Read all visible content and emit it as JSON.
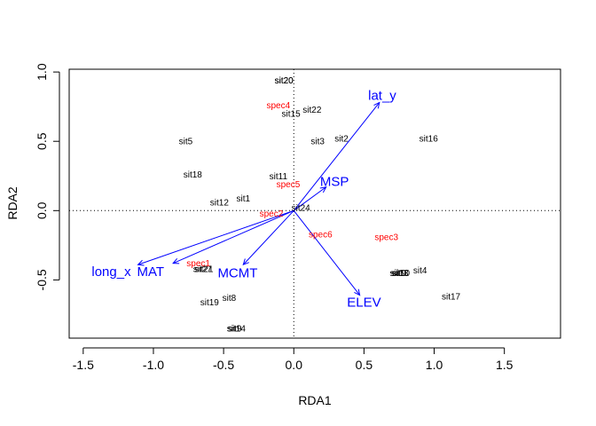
{
  "chart_data": {
    "type": "scatter",
    "xlabel": "RDA1",
    "ylabel": "RDA2",
    "xlim": [
      -1.6,
      1.9
    ],
    "ylim": [
      -0.92,
      1.02
    ],
    "xticks": [
      -1.5,
      -1.0,
      -0.5,
      0.0,
      0.5,
      1.0,
      1.5
    ],
    "xtick_labels": [
      "-1.5",
      "-1.0",
      "-0.5",
      "0.0",
      "0.5",
      "1.0",
      "1.5"
    ],
    "yticks": [
      -0.5,
      0.0,
      0.5,
      1.0
    ],
    "ytick_labels": [
      "-0.5",
      "0.0",
      "0.5",
      "1.0"
    ],
    "reference_lines": {
      "x": 0,
      "y": 0,
      "style": "dotted"
    },
    "grid": false,
    "colors": {
      "sites": "#000000",
      "species": "#ff0000",
      "biplot": "#0000ff",
      "axes": "#000000"
    },
    "sites": [
      {
        "label": "sit20",
        "x": -0.07,
        "y": 0.94
      },
      {
        "label": "sit20",
        "x": -0.07,
        "y": 0.94
      },
      {
        "label": "sit22",
        "x": 0.13,
        "y": 0.73
      },
      {
        "label": "sit15",
        "x": -0.02,
        "y": 0.7
      },
      {
        "label": "sit5",
        "x": -0.77,
        "y": 0.5
      },
      {
        "label": "sit3",
        "x": 0.17,
        "y": 0.5
      },
      {
        "label": "sit2",
        "x": 0.34,
        "y": 0.52
      },
      {
        "label": "sit16",
        "x": 0.96,
        "y": 0.52
      },
      {
        "label": "sit18",
        "x": -0.72,
        "y": 0.26
      },
      {
        "label": "sit11",
        "x": -0.11,
        "y": 0.25
      },
      {
        "label": "sit12",
        "x": -0.53,
        "y": 0.06
      },
      {
        "label": "sit1",
        "x": -0.36,
        "y": 0.09
      },
      {
        "label": "sit24",
        "x": 0.05,
        "y": 0.02
      },
      {
        "label": "sit27",
        "x": -0.65,
        "y": -0.42
      },
      {
        "label": "sit21",
        "x": -0.64,
        "y": -0.42
      },
      {
        "label": "sit4",
        "x": 0.9,
        "y": -0.43
      },
      {
        "label": "sit13",
        "x": 0.75,
        "y": -0.45
      },
      {
        "label": "sit10",
        "x": 0.76,
        "y": -0.45
      },
      {
        "label": "sit9",
        "x": 0.75,
        "y": -0.45
      },
      {
        "label": "sit19",
        "x": -0.6,
        "y": -0.66
      },
      {
        "label": "sit8",
        "x": -0.46,
        "y": -0.63
      },
      {
        "label": "sit17",
        "x": 1.12,
        "y": -0.62
      },
      {
        "label": "sit14",
        "x": -0.41,
        "y": -0.85
      },
      {
        "label": "sit9",
        "x": -0.42,
        "y": -0.85
      }
    ],
    "species": [
      {
        "label": "spec4",
        "x": -0.11,
        "y": 0.76
      },
      {
        "label": "spec5",
        "x": -0.04,
        "y": 0.19
      },
      {
        "label": "spec2",
        "x": -0.16,
        "y": -0.02
      },
      {
        "label": "spec6",
        "x": 0.19,
        "y": -0.17
      },
      {
        "label": "spec3",
        "x": 0.66,
        "y": -0.19
      },
      {
        "label": "spec1",
        "x": -0.68,
        "y": -0.38
      }
    ],
    "biplot_arrows": [
      {
        "label": "lat_y",
        "x": 0.61,
        "y": 0.78,
        "label_x": 0.63,
        "label_y": 0.83
      },
      {
        "label": "MSP",
        "x": 0.23,
        "y": 0.17,
        "label_x": 0.29,
        "label_y": 0.21
      },
      {
        "label": "long_x",
        "x": -1.11,
        "y": -0.39,
        "label_x": -1.3,
        "label_y": -0.44
      },
      {
        "label": "MAT",
        "x": -0.86,
        "y": -0.38,
        "label_x": -1.02,
        "label_y": -0.44
      },
      {
        "label": "MCMT",
        "x": -0.36,
        "y": -0.39,
        "label_x": -0.4,
        "label_y": -0.45
      },
      {
        "label": "ELEV",
        "x": 0.47,
        "y": -0.61,
        "label_x": 0.5,
        "label_y": -0.66
      }
    ]
  }
}
